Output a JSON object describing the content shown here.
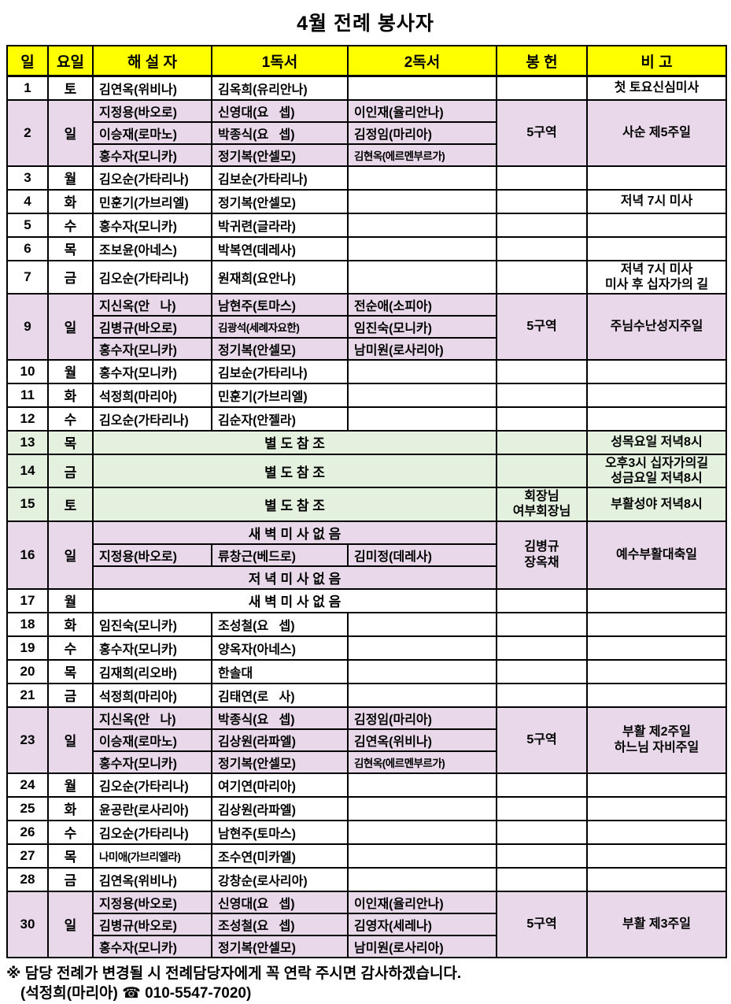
{
  "title": "4월 전례 봉사자",
  "colors": {
    "header_bg": "#FFFF00",
    "sunday_row_bg": "#E8D8EA",
    "special_row_bg": "#E3F1DE",
    "border": "#000000"
  },
  "table": {
    "headers": [
      "일",
      "요일",
      "해 설 자",
      "1독서",
      "2독서",
      "봉 헌",
      "비 고"
    ],
    "rows": [
      {
        "day": "1",
        "weekday": "토",
        "bg": "white",
        "offering": "",
        "note": "첫 토요신심미사",
        "subs": [
          {
            "cells": [
              "김연옥(위비나)",
              "김옥희(유리안나)",
              ""
            ]
          }
        ]
      },
      {
        "day": "2",
        "weekday": "일",
        "bg": "purple",
        "offering": "5구역",
        "note": "사순 제5주일",
        "subs": [
          {
            "cells": [
              "지정용(바오로)",
              "신영대(요   셉)",
              "이인재(율리안나)"
            ]
          },
          {
            "cells": [
              "이승재(로마노)",
              "박종식(요   셉)",
              "김정임(마리아)"
            ]
          },
          {
            "cells": [
              "홍수자(모니카)",
              "정기복(안셀모)",
              "김현옥(에르멘부르가)"
            ]
          }
        ]
      },
      {
        "day": "3",
        "weekday": "월",
        "bg": "white",
        "offering": "",
        "note": "",
        "subs": [
          {
            "cells": [
              "김오순(가타리나)",
              "김보순(가타리나)",
              ""
            ]
          }
        ]
      },
      {
        "day": "4",
        "weekday": "화",
        "bg": "white",
        "offering": "",
        "note": "저녁 7시 미사",
        "subs": [
          {
            "cells": [
              "민훈기(가브리엘)",
              "정기복(안셀모)",
              ""
            ]
          }
        ]
      },
      {
        "day": "5",
        "weekday": "수",
        "bg": "white",
        "offering": "",
        "note": "",
        "subs": [
          {
            "cells": [
              "홍수자(모니카)",
              "박귀련(글라라)",
              ""
            ]
          }
        ]
      },
      {
        "day": "6",
        "weekday": "목",
        "bg": "white",
        "offering": "",
        "note": "",
        "subs": [
          {
            "cells": [
              "조보윤(아네스)",
              "박복연(데레사)",
              ""
            ]
          }
        ]
      },
      {
        "day": "7",
        "weekday": "금",
        "bg": "white",
        "offering": "",
        "note": "저녁 7시 미사\n미사 후 십자가의 길",
        "subs": [
          {
            "cells": [
              "김오순(가타리나)",
              "원재희(요안나)",
              ""
            ]
          }
        ]
      },
      {
        "day": "9",
        "weekday": "일",
        "bg": "purple",
        "offering": "5구역",
        "note": "주님수난성지주일",
        "subs": [
          {
            "cells": [
              "지신옥(안   나)",
              "남현주(토마스)",
              "전순애(소피아)"
            ]
          },
          {
            "cells": [
              "김병규(바오로)",
              "김광석(세례자요한)",
              "임진숙(모니카)"
            ]
          },
          {
            "cells": [
              "홍수자(모니카)",
              "정기복(안셀모)",
              "남미원(로사리아)"
            ]
          }
        ]
      },
      {
        "day": "10",
        "weekday": "월",
        "bg": "white",
        "offering": "",
        "note": "",
        "subs": [
          {
            "cells": [
              "홍수자(모니카)",
              "김보순(가타리나)",
              ""
            ]
          }
        ]
      },
      {
        "day": "11",
        "weekday": "화",
        "bg": "white",
        "offering": "",
        "note": "",
        "subs": [
          {
            "cells": [
              "석정희(마리아)",
              "민훈기(가브리엘)",
              ""
            ]
          }
        ]
      },
      {
        "day": "12",
        "weekday": "수",
        "bg": "white",
        "offering": "",
        "note": "",
        "subs": [
          {
            "cells": [
              "김오순(가타리나)",
              "김순자(안젤라)",
              ""
            ]
          }
        ]
      },
      {
        "day": "13",
        "weekday": "목",
        "bg": "green",
        "offering": "",
        "note": "성목요일 저녁8시",
        "subs": [
          {
            "span": "별 도 참 조"
          }
        ]
      },
      {
        "day": "14",
        "weekday": "금",
        "bg": "green",
        "offering": "",
        "note": "오후3시 십자가의길\n성금요일 저녁8시",
        "subs": [
          {
            "span": "별 도 참 조"
          }
        ]
      },
      {
        "day": "15",
        "weekday": "토",
        "bg": "green",
        "offering": "회장님\n여부회장님",
        "note": "부활성야 저녁8시",
        "subs": [
          {
            "span": "별 도 참 조"
          }
        ]
      },
      {
        "day": "16",
        "weekday": "일",
        "bg": "purple",
        "offering": "김병규\n장옥채",
        "note": "예수부활대축일",
        "subs": [
          {
            "span": "새 벽 미 사 없 음"
          },
          {
            "cells": [
              "지정용(바오로)",
              "류창근(베드로)",
              "김미정(데레사)"
            ]
          },
          {
            "span": "저 녁 미 사 없 음"
          }
        ]
      },
      {
        "day": "17",
        "weekday": "월",
        "bg": "white",
        "offering": "",
        "note": "",
        "subs": [
          {
            "span": "새 벽 미 사 없 음"
          }
        ]
      },
      {
        "day": "18",
        "weekday": "화",
        "bg": "white",
        "offering": "",
        "note": "",
        "subs": [
          {
            "cells": [
              "임진숙(모니카)",
              "조성철(요   셉)",
              ""
            ]
          }
        ]
      },
      {
        "day": "19",
        "weekday": "수",
        "bg": "white",
        "offering": "",
        "note": "",
        "subs": [
          {
            "cells": [
              "홍수자(모니카)",
              "양옥자(아네스)",
              ""
            ]
          }
        ]
      },
      {
        "day": "20",
        "weekday": "목",
        "bg": "white",
        "offering": "",
        "note": "",
        "subs": [
          {
            "cells": [
              "김재희(리오바)",
              "한솔대",
              ""
            ]
          }
        ]
      },
      {
        "day": "21",
        "weekday": "금",
        "bg": "white",
        "offering": "",
        "note": "",
        "subs": [
          {
            "cells": [
              "석정희(마리아)",
              "김태연(로   사)",
              ""
            ]
          }
        ]
      },
      {
        "day": "23",
        "weekday": "일",
        "bg": "purple",
        "offering": "5구역",
        "note": "부활 제2주일\n하느님 자비주일",
        "subs": [
          {
            "cells": [
              "지신옥(안   나)",
              "박종식(요   셉)",
              "김정임(마리아)"
            ]
          },
          {
            "cells": [
              "이승재(로마노)",
              "김상원(라파엘)",
              "김연옥(위비나)"
            ]
          },
          {
            "cells": [
              "홍수자(모니카)",
              "정기복(안셀모)",
              "김현옥(에르멘부르가)"
            ]
          }
        ]
      },
      {
        "day": "24",
        "weekday": "월",
        "bg": "white",
        "offering": "",
        "note": "",
        "subs": [
          {
            "cells": [
              "김오순(가타리나)",
              "여기연(마리아)",
              ""
            ]
          }
        ]
      },
      {
        "day": "25",
        "weekday": "화",
        "bg": "white",
        "offering": "",
        "note": "",
        "subs": [
          {
            "cells": [
              "윤공란(로사리아)",
              "김상원(라파엘)",
              ""
            ]
          }
        ]
      },
      {
        "day": "26",
        "weekday": "수",
        "bg": "white",
        "offering": "",
        "note": "",
        "subs": [
          {
            "cells": [
              "김오순(가타리나)",
              "남현주(토마스)",
              ""
            ]
          }
        ]
      },
      {
        "day": "27",
        "weekday": "목",
        "bg": "white",
        "offering": "",
        "note": "",
        "subs": [
          {
            "cells": [
              "나미애(가브리엘라)",
              "조수연(미카엘)",
              ""
            ]
          }
        ]
      },
      {
        "day": "28",
        "weekday": "금",
        "bg": "white",
        "offering": "",
        "note": "",
        "subs": [
          {
            "cells": [
              "김연옥(위비나)",
              "강창순(로사리아)",
              ""
            ]
          }
        ]
      },
      {
        "day": "30",
        "weekday": "일",
        "bg": "purple",
        "offering": "5구역",
        "note": "부활 제3주일",
        "subs": [
          {
            "cells": [
              "지정용(바오로)",
              "신영대(요   셉)",
              "이인재(율리안나)"
            ]
          },
          {
            "cells": [
              "김병규(바오로)",
              "조성철(요   셉)",
              "김영자(세레나)"
            ]
          },
          {
            "cells": [
              "홍수자(모니카)",
              "정기복(안셀모)",
              "남미원(로사리아)"
            ]
          }
        ]
      }
    ]
  },
  "footer": {
    "line1": "※ 담당 전례가 변경될 시 전례담당자에게 꼭 연락 주시면 감사하겠습니다.",
    "contact_prefix": "(석정희(마리아) ",
    "phone_icon": "☎",
    "contact_suffix": " 010-5547-7020)"
  }
}
